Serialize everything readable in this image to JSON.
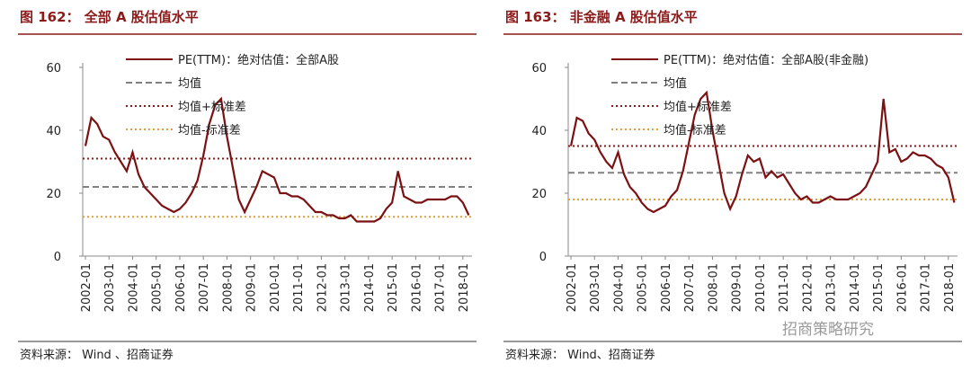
{
  "watermark": "招商策略研究",
  "chart_data": [
    {
      "type": "line",
      "title": "图 162： 全部 A 股估值水平",
      "source": "资料来源：  Wind 、招商证券",
      "categories": [
        "2002-01",
        null,
        null,
        null,
        "2003-01",
        null,
        null,
        null,
        "2004-01",
        null,
        null,
        null,
        "2005-01",
        null,
        null,
        null,
        "2006-01",
        null,
        null,
        null,
        "2007-01",
        null,
        null,
        null,
        "2008-01",
        null,
        null,
        null,
        "2009-01",
        null,
        null,
        null,
        "2010-01",
        null,
        null,
        null,
        "2011-01",
        null,
        null,
        null,
        "2012-01",
        null,
        null,
        null,
        "2013-01",
        null,
        null,
        null,
        "2014-01",
        null,
        null,
        null,
        "2015-01",
        null,
        null,
        null,
        "2016-01",
        null,
        null,
        null,
        "2017-01",
        null,
        null,
        null,
        "2018-01",
        null
      ],
      "series": [
        {
          "name": "PE(TTM)：绝对估值：全部A股",
          "color": "#7b1113",
          "values": [
            35,
            44,
            42,
            38,
            37,
            33,
            30,
            27,
            33,
            26,
            22,
            20,
            18,
            16,
            15,
            14,
            15,
            17,
            20,
            24,
            32,
            42,
            48,
            50,
            38,
            28,
            18,
            14,
            18,
            22,
            27,
            26,
            25,
            20,
            20,
            19,
            19,
            18,
            16,
            14,
            14,
            13,
            13,
            12,
            12,
            13,
            11,
            11,
            11,
            11,
            12,
            15,
            17,
            27,
            19,
            18,
            17,
            17,
            18,
            18,
            18,
            18,
            19,
            19,
            17,
            13
          ]
        }
      ],
      "ref_lines": [
        {
          "name": "均值",
          "value": 22,
          "color": "#808080",
          "style": "dashed"
        },
        {
          "name": "均值+标准差",
          "value": 31,
          "color": "#8b1a1a",
          "style": "dotted"
        },
        {
          "name": "均值-标准差",
          "value": 12.5,
          "color": "#e0a040",
          "style": "dotted"
        }
      ],
      "ylim": [
        0,
        60
      ],
      "yticks": [
        0,
        20,
        40,
        60
      ]
    },
    {
      "type": "line",
      "title": "图 163： 非金融 A 股估值水平",
      "source": "资料来源：  Wind、招商证券",
      "categories": [
        "2002-01",
        null,
        null,
        null,
        "2003-01",
        null,
        null,
        null,
        "2004-01",
        null,
        null,
        null,
        "2005-01",
        null,
        null,
        null,
        "2006-01",
        null,
        null,
        null,
        "2007-01",
        null,
        null,
        null,
        "2008-01",
        null,
        null,
        null,
        "2009-01",
        null,
        null,
        null,
        "2010-01",
        null,
        null,
        null,
        "2011-01",
        null,
        null,
        null,
        "2012-01",
        null,
        null,
        null,
        "2013-01",
        null,
        null,
        null,
        "2014-01",
        null,
        null,
        null,
        "2015-01",
        null,
        null,
        null,
        "2016-01",
        null,
        null,
        null,
        "2017-01",
        null,
        null,
        null,
        "2018-01",
        null
      ],
      "series": [
        {
          "name": "PE(TTM)：绝对估值：全部A股(非金融)",
          "color": "#7b1113",
          "values": [
            35,
            44,
            43,
            39,
            37,
            33,
            30,
            28,
            33,
            26,
            22,
            20,
            17,
            15,
            14,
            15,
            16,
            19,
            21,
            27,
            36,
            45,
            50,
            52,
            40,
            30,
            20,
            15,
            19,
            26,
            32,
            30,
            31,
            25,
            27,
            25,
            26,
            23,
            20,
            18,
            19,
            17,
            17,
            18,
            19,
            18,
            18,
            18,
            19,
            20,
            22,
            26,
            30,
            50,
            33,
            34,
            30,
            31,
            33,
            32,
            32,
            31,
            29,
            28,
            25,
            17
          ]
        }
      ],
      "ref_lines": [
        {
          "name": "均值",
          "value": 26.5,
          "color": "#808080",
          "style": "dashed"
        },
        {
          "name": "均值+标准差",
          "value": 35,
          "color": "#8b1a1a",
          "style": "dotted"
        },
        {
          "name": "均值-标准差",
          "value": 18,
          "color": "#e0a040",
          "style": "dotted"
        }
      ],
      "ylim": [
        0,
        60
      ],
      "yticks": [
        0,
        20,
        40,
        60
      ]
    }
  ]
}
